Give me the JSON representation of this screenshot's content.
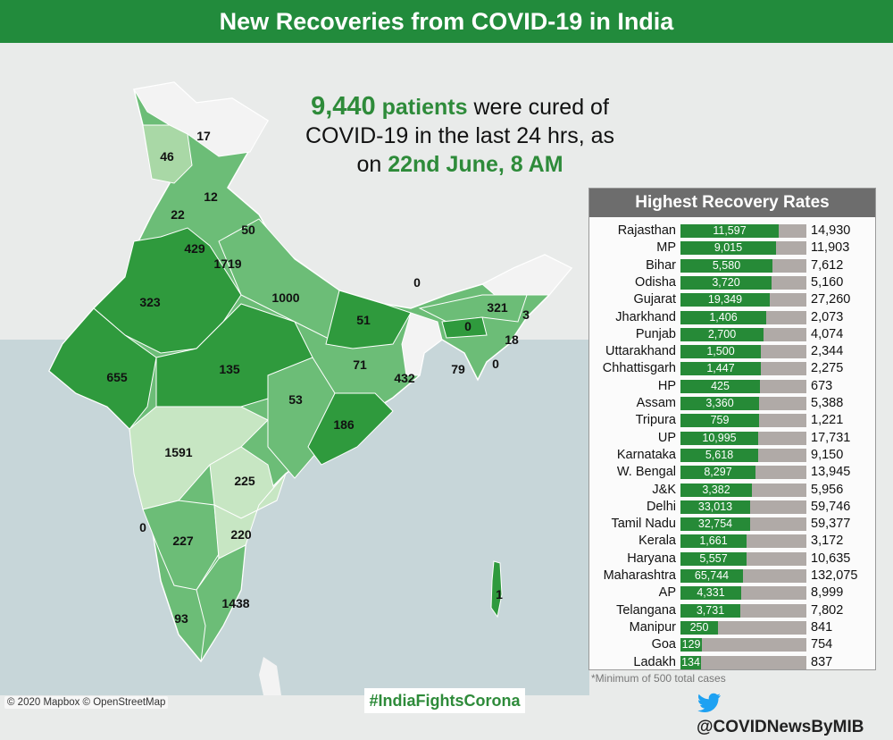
{
  "header": {
    "title": "New Recoveries from COVID-19 in India"
  },
  "headline": {
    "count": "9,440",
    "count_unit": "patients",
    "text_1": "were cured of",
    "text_2": "COVID-19 in the last 24 hrs, as",
    "text_3": "on",
    "date": "22nd June, 8 AM"
  },
  "map_labels": [
    "17",
    "46",
    "12",
    "22",
    "50",
    "429",
    "1719",
    "1000",
    "323",
    "51",
    "0",
    "321",
    "3",
    "0",
    "18",
    "655",
    "135",
    "71",
    "432",
    "79",
    "0",
    "53",
    "186",
    "1591",
    "225",
    "0",
    "227",
    "220",
    "1438",
    "93",
    "1"
  ],
  "chart_data": {
    "type": "bar",
    "title": "Highest Recovery Rates",
    "categories": [
      "Rajasthan",
      "MP",
      "Bihar",
      "Odisha",
      "Gujarat",
      "Jharkhand",
      "Punjab",
      "Uttarakhand",
      "Chhattisgarh",
      "HP",
      "Assam",
      "Tripura",
      "UP",
      "Karnataka",
      "W. Bengal",
      "J&K",
      "Delhi",
      "Tamil Nadu",
      "Kerala",
      "Haryana",
      "Maharashtra",
      "AP",
      "Telangana",
      "Manipur",
      "Goa",
      "Ladakh"
    ],
    "recovered": [
      11597,
      9015,
      5580,
      3720,
      19349,
      1406,
      2700,
      1500,
      1447,
      425,
      3360,
      759,
      10995,
      5618,
      8297,
      3382,
      33013,
      32754,
      1661,
      5557,
      65744,
      4331,
      3731,
      250,
      129,
      134
    ],
    "recovered_labels": [
      "11,597",
      "9,015",
      "5,580",
      "3,720",
      "19,349",
      "1,406",
      "2,700",
      "1,500",
      "1,447",
      "425",
      "3,360",
      "759",
      "10,995",
      "5,618",
      "8,297",
      "3,382",
      "33,013",
      "32,754",
      "1,661",
      "5,557",
      "65,744",
      "4,331",
      "3,731",
      "250",
      "129",
      "134"
    ],
    "total": [
      14930,
      11903,
      7612,
      5160,
      27260,
      2073,
      4074,
      2344,
      2275,
      673,
      5388,
      1221,
      17731,
      9150,
      13945,
      5956,
      59746,
      59377,
      3172,
      10635,
      132075,
      8999,
      7802,
      841,
      754,
      837
    ],
    "total_labels": [
      "14,930",
      "11,903",
      "7,612",
      "5,160",
      "27,260",
      "2,073",
      "4,074",
      "2,344",
      "2,275",
      "673",
      "5,388",
      "1,221",
      "17,731",
      "9,150",
      "13,945",
      "5,956",
      "59,746",
      "59,377",
      "3,172",
      "10,635",
      "132,075",
      "8,999",
      "7,802",
      "841",
      "754",
      "837"
    ],
    "colors": {
      "recovered": "#268a37",
      "total": "#b0aaa7"
    }
  },
  "footnote": "*Minimum of 500 total cases",
  "credits": "© 2020 Mapbox © OpenStreetMap",
  "hashtag": "#IndiaFightsCorona",
  "handle": "@COVIDNewsByMIB"
}
